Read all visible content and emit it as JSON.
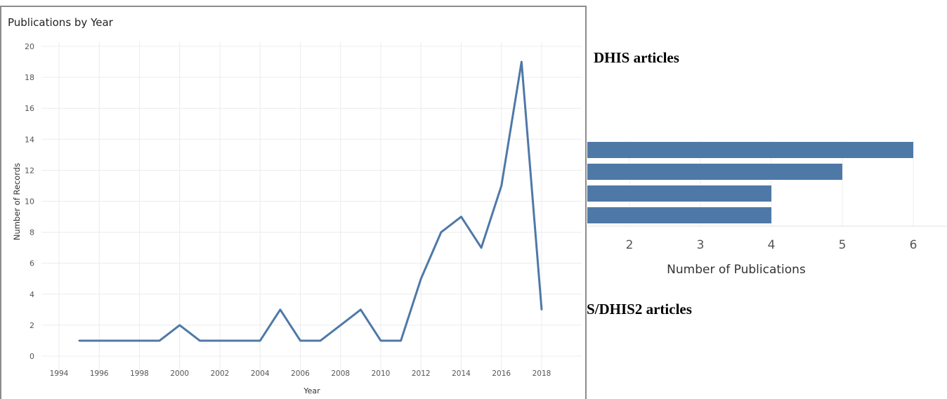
{
  "line_panel": {
    "title": "Publications by Year"
  },
  "captions": {
    "top": "DHIS articles",
    "bottom": "S/DHIS2 articles"
  },
  "colors": {
    "series": "#4e79a7",
    "grid": "#ececec",
    "axis_text": "#555555"
  },
  "chart_data": [
    {
      "type": "line",
      "title": "Publications by Year",
      "xlabel": "Year",
      "ylabel": "Number of Records",
      "xlim": [
        1993,
        2020
      ],
      "ylim": [
        0,
        20
      ],
      "x_ticks": [
        1994,
        1996,
        1998,
        2000,
        2002,
        2004,
        2006,
        2008,
        2010,
        2012,
        2014,
        2016,
        2018
      ],
      "y_ticks": [
        0,
        2,
        4,
        6,
        8,
        10,
        12,
        14,
        16,
        18,
        20
      ],
      "grid": true,
      "series": [
        {
          "x": [
            1995,
            1996,
            1997,
            1998,
            1999,
            2000,
            2001,
            2002,
            2003,
            2004,
            2005,
            2006,
            2007,
            2008,
            2009,
            2010,
            2011,
            2012,
            2013,
            2014,
            2015,
            2016,
            2017,
            2018
          ],
          "values": [
            1,
            1,
            1,
            1,
            1,
            2,
            1,
            1,
            1,
            1,
            3,
            1,
            1,
            2,
            3,
            1,
            1,
            5,
            8,
            9,
            7,
            11,
            19,
            3
          ]
        }
      ]
    },
    {
      "type": "bar",
      "orientation": "horizontal",
      "xlabel": "Number of Publications",
      "x_ticks": [
        2,
        3,
        4,
        5,
        6
      ],
      "values": [
        6,
        5,
        4,
        4
      ],
      "grid": true
    }
  ]
}
